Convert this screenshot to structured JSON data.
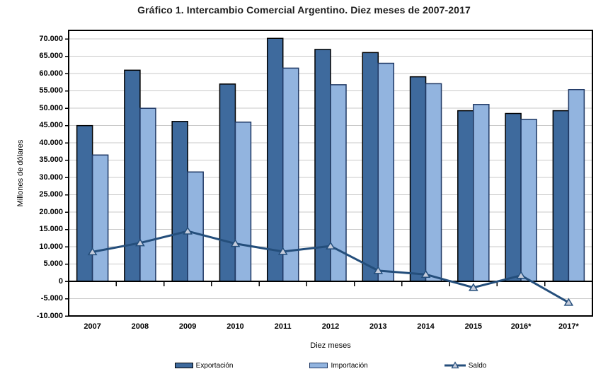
{
  "chart_data": {
    "type": "bar+line combo",
    "title": "Gráfico 1. Intercambio Comercial Argentino. Diez meses de 2007-2017",
    "xlabel": "Diez meses",
    "ylabel": "Millones de dólares",
    "categories": [
      "2007",
      "2008",
      "2009",
      "2010",
      "2011",
      "2012",
      "2013",
      "2014",
      "2015",
      "2016*",
      "2017*"
    ],
    "series": [
      {
        "name": "Exportación",
        "type": "bar",
        "values": [
          45000,
          61000,
          46200,
          57000,
          70200,
          67000,
          66100,
          59100,
          49300,
          48500,
          49300
        ]
      },
      {
        "name": "Importación",
        "type": "bar",
        "values": [
          36500,
          50000,
          31600,
          46000,
          61600,
          56800,
          63000,
          57100,
          51100,
          46800,
          55400
        ]
      },
      {
        "name": "Saldo",
        "type": "line",
        "marker": "triangle",
        "values": [
          8500,
          11100,
          14500,
          10900,
          8600,
          10200,
          3100,
          2000,
          -1800,
          1700,
          -6100
        ]
      }
    ],
    "y_axis": {
      "min": -10000,
      "max": 72500,
      "tick_step": 5000,
      "tick_values": [
        70000,
        65000,
        60000,
        55000,
        50000,
        45000,
        40000,
        35000,
        30000,
        25000,
        20000,
        15000,
        10000,
        5000,
        0,
        -5000,
        -10000
      ],
      "tick_labels": [
        "70.000",
        "65.000",
        "60.000",
        "55.000",
        "50.000",
        "45.000",
        "40.000",
        "35.000",
        "30.000",
        "25.000",
        "20.000",
        "15.000",
        "10.000",
        "5.000",
        "0",
        "-5.000",
        "-10.000"
      ]
    },
    "grid": true,
    "legend_position": "bottom",
    "colors": {
      "exportacion_fill": "#3E6A9D",
      "exportacion_border": "#000000",
      "importacion_fill": "#92B4DF",
      "importacion_border": "#1F3864",
      "saldo_line": "#244E7B",
      "saldo_marker_fill": "#C5CCDC",
      "gridline": "#C8C8C8",
      "axis": "#000000"
    }
  }
}
